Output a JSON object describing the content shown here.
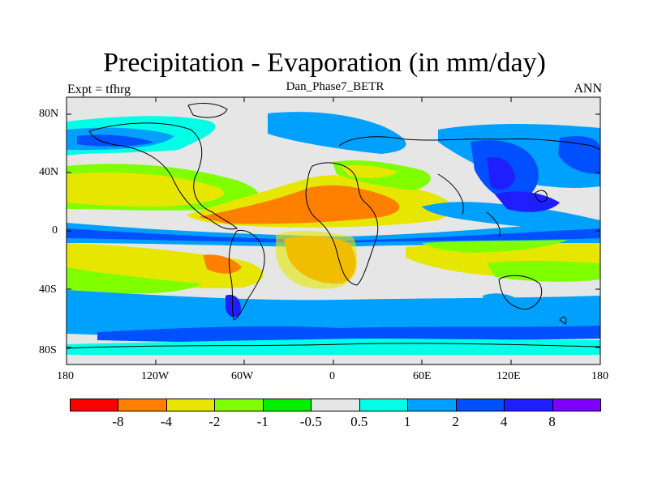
{
  "plot": {
    "title": "Precipitation - Evaporation (in mm/day)",
    "left_string": "Expt = tfhrg",
    "center_string": "Dan_Phase7_BETR",
    "right_string": "ANN",
    "lat_labels": [
      "80N",
      "40N",
      "0",
      "40S",
      "80S"
    ],
    "lon_labels": [
      "180",
      "120W",
      "60W",
      "0",
      "60E",
      "120E",
      "180"
    ]
  },
  "colorbar": {
    "labels": [
      "-8",
      "-4",
      "-2",
      "-1",
      "-0.5",
      "0.5",
      "1",
      "2",
      "4",
      "8"
    ],
    "colors": [
      "#ff0000",
      "#ff8000",
      "#e6e600",
      "#80ff00",
      "#00f000",
      "#e6e6e6",
      "#00ffe6",
      "#00a0ff",
      "#0050ff",
      "#1e1eff",
      "#8000ff"
    ]
  },
  "colors": {
    "frame": "#000000",
    "coastline": "#000000"
  }
}
